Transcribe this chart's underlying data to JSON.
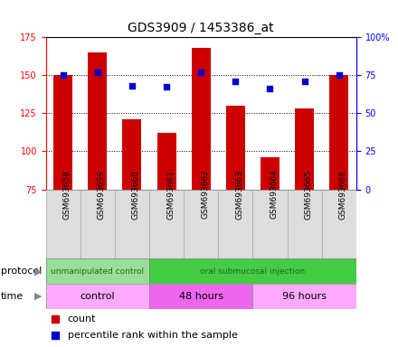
{
  "title": "GDS3909 / 1453386_at",
  "samples": [
    "GSM693658",
    "GSM693659",
    "GSM693660",
    "GSM693661",
    "GSM693662",
    "GSM693663",
    "GSM693664",
    "GSM693665",
    "GSM693666"
  ],
  "bar_values": [
    150,
    165,
    121,
    112,
    168,
    130,
    96,
    128,
    150
  ],
  "percentile_values": [
    75,
    77,
    68,
    67,
    77,
    71,
    66,
    71,
    75
  ],
  "ylim_left": [
    75,
    175
  ],
  "ylim_right": [
    0,
    100
  ],
  "yticks_left": [
    75,
    100,
    125,
    150,
    175
  ],
  "yticks_right": [
    0,
    25,
    50,
    75,
    100
  ],
  "bar_color": "#cc0000",
  "dot_color": "#0000cc",
  "protocol_groups": [
    {
      "label": "unmanipulated control",
      "start": 0,
      "end": 3,
      "color": "#99dd99"
    },
    {
      "label": "oral submucosal injection",
      "start": 3,
      "end": 9,
      "color": "#44cc44"
    }
  ],
  "time_groups": [
    {
      "label": "control",
      "start": 0,
      "end": 3,
      "color": "#ffaaff"
    },
    {
      "label": "48 hours",
      "start": 3,
      "end": 6,
      "color": "#ee66ee"
    },
    {
      "label": "96 hours",
      "start": 6,
      "end": 9,
      "color": "#ffaaff"
    }
  ],
  "legend_items": [
    {
      "color": "#cc0000",
      "label": "count"
    },
    {
      "color": "#0000cc",
      "label": "percentile rank within the sample"
    }
  ],
  "bar_width": 0.55,
  "figsize": [
    4.4,
    3.84
  ],
  "dpi": 100
}
